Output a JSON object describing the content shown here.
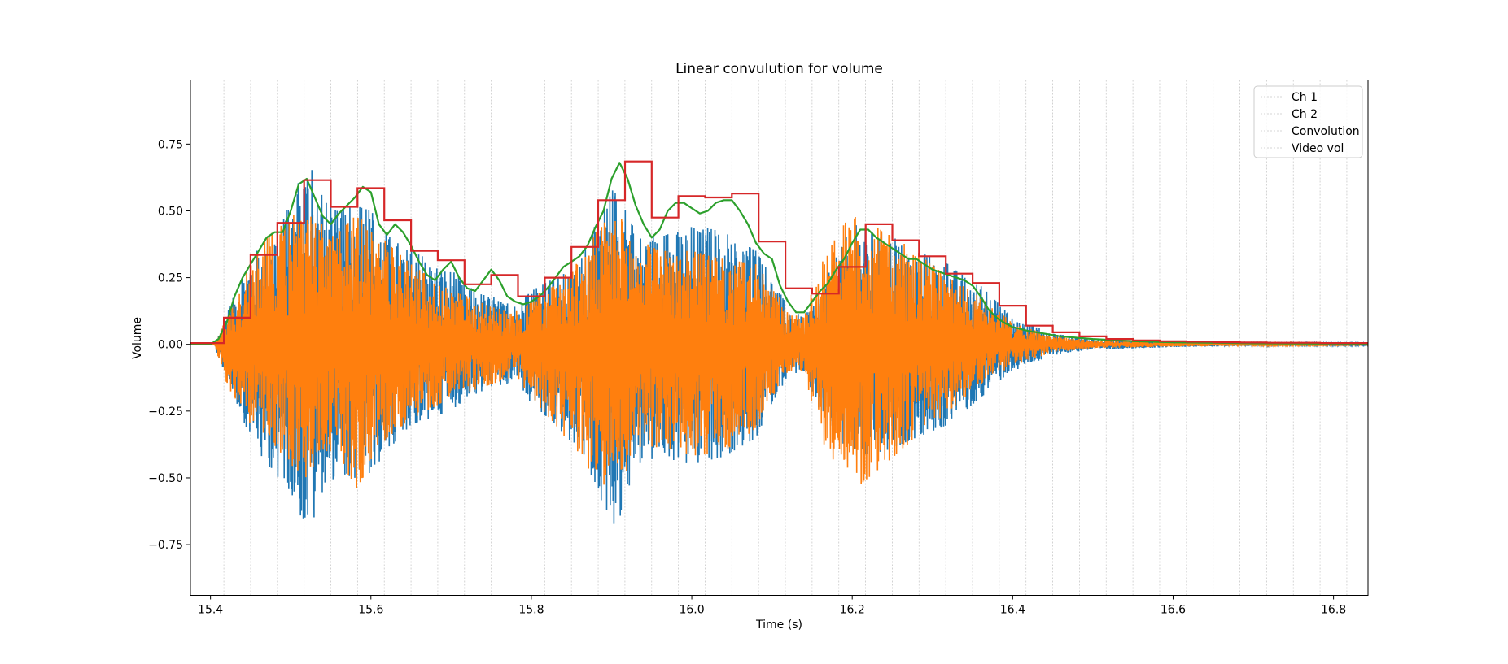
{
  "chart_data": {
    "type": "line",
    "title": "Linear convulution for volume",
    "xlabel": "Time (s)",
    "ylabel": "Volume",
    "xlim": [
      15.375,
      16.843
    ],
    "ylim": [
      -0.94,
      0.99
    ],
    "xticks": [
      15.4,
      15.6,
      15.8,
      16.0,
      16.2,
      16.4,
      16.6,
      16.8
    ],
    "xtick_labels": [
      "15.4",
      "15.6",
      "15.8",
      "16.0",
      "16.2",
      "16.4",
      "16.6",
      "16.8"
    ],
    "yticks": [
      -0.75,
      -0.5,
      -0.25,
      0.0,
      0.25,
      0.5,
      0.75
    ],
    "ytick_labels": [
      "−0.75",
      "−0.50",
      "−0.25",
      "0.00",
      "0.25",
      "0.50",
      "0.75"
    ],
    "grid": "vertical dotted lines at frame boundaries",
    "frame_lines": {
      "start": 15.4167,
      "step": 0.03333,
      "count": 43
    },
    "legend_position": "upper right",
    "series": [
      {
        "name": "Ch 1",
        "color": "#1f77b4",
        "kind": "waveform",
        "envelope": {
          "t": [
            15.375,
            15.405,
            15.42,
            15.45,
            15.47,
            15.5,
            15.52,
            15.54,
            15.56,
            15.58,
            15.6,
            15.62,
            15.65,
            15.7,
            15.72,
            15.75,
            15.78,
            15.8,
            15.83,
            15.86,
            15.88,
            15.9,
            15.91,
            15.93,
            15.96,
            16.0,
            16.04,
            16.08,
            16.1,
            16.12,
            16.14,
            16.16,
            16.2,
            16.24,
            16.28,
            16.32,
            16.36,
            16.4,
            16.45,
            16.5,
            16.6,
            16.7,
            16.843
          ],
          "pos": [
            0.0,
            0.0,
            0.12,
            0.32,
            0.42,
            0.52,
            0.7,
            0.55,
            0.5,
            0.52,
            0.5,
            0.42,
            0.35,
            0.28,
            0.22,
            0.18,
            0.14,
            0.2,
            0.25,
            0.3,
            0.45,
            0.58,
            0.55,
            0.42,
            0.4,
            0.45,
            0.42,
            0.35,
            0.25,
            0.14,
            0.1,
            0.2,
            0.45,
            0.42,
            0.35,
            0.3,
            0.22,
            0.1,
            0.04,
            0.02,
            0.01,
            0.005,
            0.003
          ],
          "neg": [
            0.0,
            0.0,
            0.14,
            0.35,
            0.45,
            0.55,
            0.73,
            0.55,
            0.48,
            0.5,
            0.48,
            0.4,
            0.3,
            0.25,
            0.2,
            0.16,
            0.14,
            0.22,
            0.3,
            0.4,
            0.52,
            0.7,
            0.65,
            0.45,
            0.42,
            0.45,
            0.42,
            0.35,
            0.22,
            0.12,
            0.1,
            0.25,
            0.42,
            0.4,
            0.35,
            0.3,
            0.2,
            0.1,
            0.04,
            0.02,
            0.01,
            0.005,
            0.003
          ]
        }
      },
      {
        "name": "Ch 2",
        "color": "#ff7f0e",
        "kind": "waveform",
        "envelope": {
          "t": [
            15.375,
            15.405,
            15.42,
            15.45,
            15.47,
            15.5,
            15.52,
            15.54,
            15.56,
            15.58,
            15.6,
            15.62,
            15.65,
            15.7,
            15.72,
            15.75,
            15.78,
            15.8,
            15.83,
            15.86,
            15.88,
            15.9,
            15.91,
            15.93,
            15.96,
            16.0,
            16.04,
            16.08,
            16.1,
            16.12,
            16.14,
            16.16,
            16.2,
            16.24,
            16.28,
            16.32,
            16.36,
            16.4,
            16.45,
            16.5,
            16.6,
            16.7,
            16.843
          ],
          "pos": [
            0.0,
            0.0,
            0.1,
            0.3,
            0.4,
            0.48,
            0.5,
            0.45,
            0.42,
            0.48,
            0.45,
            0.38,
            0.3,
            0.2,
            0.18,
            0.14,
            0.12,
            0.18,
            0.22,
            0.32,
            0.42,
            0.5,
            0.48,
            0.4,
            0.35,
            0.35,
            0.32,
            0.3,
            0.22,
            0.12,
            0.1,
            0.3,
            0.5,
            0.42,
            0.35,
            0.25,
            0.18,
            0.08,
            0.03,
            0.015,
            0.008,
            0.004,
            0.002
          ],
          "neg": [
            0.0,
            0.0,
            0.15,
            0.3,
            0.35,
            0.45,
            0.5,
            0.4,
            0.4,
            0.55,
            0.45,
            0.35,
            0.28,
            0.2,
            0.18,
            0.15,
            0.12,
            0.2,
            0.3,
            0.42,
            0.5,
            0.55,
            0.52,
            0.42,
            0.38,
            0.42,
            0.4,
            0.32,
            0.2,
            0.1,
            0.1,
            0.35,
            0.55,
            0.45,
            0.35,
            0.25,
            0.15,
            0.08,
            0.03,
            0.015,
            0.008,
            0.004,
            0.002
          ]
        }
      },
      {
        "name": "Convolution",
        "color": "#2ca02c",
        "kind": "smooth",
        "x": [
          15.375,
          15.4,
          15.41,
          15.42,
          15.43,
          15.44,
          15.45,
          15.46,
          15.47,
          15.48,
          15.49,
          15.5,
          15.51,
          15.52,
          15.53,
          15.54,
          15.55,
          15.56,
          15.57,
          15.58,
          15.59,
          15.6,
          15.61,
          15.62,
          15.63,
          15.64,
          15.65,
          15.66,
          15.67,
          15.68,
          15.69,
          15.7,
          15.71,
          15.72,
          15.73,
          15.74,
          15.75,
          15.76,
          15.77,
          15.78,
          15.79,
          15.8,
          15.81,
          15.82,
          15.83,
          15.84,
          15.85,
          15.86,
          15.87,
          15.88,
          15.89,
          15.9,
          15.91,
          15.92,
          15.93,
          15.94,
          15.95,
          15.96,
          15.97,
          15.98,
          15.99,
          16.0,
          16.01,
          16.02,
          16.03,
          16.04,
          16.05,
          16.06,
          16.07,
          16.08,
          16.09,
          16.1,
          16.11,
          16.12,
          16.13,
          16.14,
          16.15,
          16.16,
          16.17,
          16.18,
          16.19,
          16.2,
          16.21,
          16.22,
          16.23,
          16.24,
          16.25,
          16.26,
          16.27,
          16.28,
          16.29,
          16.3,
          16.31,
          16.32,
          16.33,
          16.34,
          16.35,
          16.36,
          16.37,
          16.38,
          16.39,
          16.4,
          16.42,
          16.44,
          16.46,
          16.48,
          16.5,
          16.55,
          16.6,
          16.7,
          16.843
        ],
        "y": [
          0.0,
          0.0,
          0.02,
          0.08,
          0.18,
          0.25,
          0.3,
          0.35,
          0.4,
          0.42,
          0.42,
          0.5,
          0.6,
          0.62,
          0.55,
          0.48,
          0.45,
          0.49,
          0.52,
          0.55,
          0.59,
          0.57,
          0.45,
          0.41,
          0.45,
          0.42,
          0.37,
          0.31,
          0.26,
          0.24,
          0.28,
          0.31,
          0.25,
          0.21,
          0.2,
          0.24,
          0.28,
          0.24,
          0.18,
          0.16,
          0.15,
          0.16,
          0.18,
          0.21,
          0.25,
          0.29,
          0.31,
          0.33,
          0.37,
          0.44,
          0.5,
          0.62,
          0.68,
          0.62,
          0.52,
          0.45,
          0.4,
          0.43,
          0.5,
          0.53,
          0.53,
          0.51,
          0.49,
          0.5,
          0.53,
          0.54,
          0.54,
          0.5,
          0.45,
          0.38,
          0.34,
          0.32,
          0.22,
          0.16,
          0.12,
          0.12,
          0.16,
          0.2,
          0.23,
          0.28,
          0.32,
          0.38,
          0.43,
          0.43,
          0.4,
          0.38,
          0.36,
          0.34,
          0.32,
          0.32,
          0.3,
          0.28,
          0.27,
          0.26,
          0.25,
          0.24,
          0.22,
          0.18,
          0.13,
          0.1,
          0.08,
          0.065,
          0.05,
          0.04,
          0.03,
          0.025,
          0.02,
          0.012,
          0.008,
          0.004,
          0.002
        ]
      },
      {
        "name": "Video vol",
        "color": "#d62728",
        "kind": "step",
        "edges": [
          15.375,
          15.4167,
          15.45,
          15.4833,
          15.5167,
          15.55,
          15.5833,
          15.6167,
          15.65,
          15.6833,
          15.7167,
          15.75,
          15.7833,
          15.8167,
          15.85,
          15.8833,
          15.9167,
          15.95,
          15.9833,
          16.0167,
          16.05,
          16.0833,
          16.1167,
          16.15,
          16.1833,
          16.2167,
          16.25,
          16.2833,
          16.3167,
          16.35,
          16.3833,
          16.4167,
          16.45,
          16.4833,
          16.5167,
          16.55,
          16.5833,
          16.6167,
          16.65,
          16.6833,
          16.7167,
          16.75,
          16.7833,
          16.8167,
          16.843
        ],
        "values": [
          0.005,
          0.1,
          0.335,
          0.455,
          0.615,
          0.515,
          0.585,
          0.465,
          0.35,
          0.315,
          0.225,
          0.26,
          0.18,
          0.25,
          0.365,
          0.54,
          0.685,
          0.475,
          0.555,
          0.55,
          0.565,
          0.385,
          0.21,
          0.19,
          0.29,
          0.45,
          0.39,
          0.33,
          0.265,
          0.23,
          0.145,
          0.07,
          0.045,
          0.03,
          0.02,
          0.015,
          0.012,
          0.01,
          0.008,
          0.007,
          0.006,
          0.006,
          0.005,
          0.005
        ]
      }
    ]
  }
}
